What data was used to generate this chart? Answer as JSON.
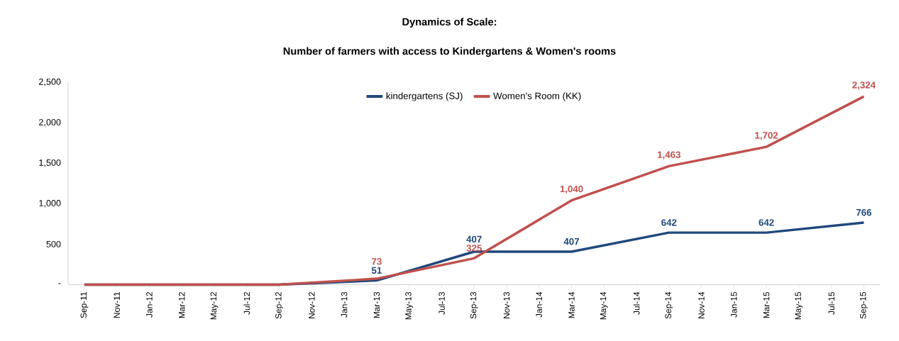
{
  "chart_data": {
    "type": "line",
    "title": "Dynamics of Scale:",
    "subtitle": "Number of farmers with access to Kindergartens & Women's rooms",
    "categories": [
      "Sep-11",
      "Nov-11",
      "Jan-12",
      "Mar-12",
      "May-12",
      "Jul-12",
      "Sep-12",
      "Nov-12",
      "Jan-13",
      "Mar-13",
      "May-13",
      "Jul-13",
      "Sep-13",
      "Nov-13",
      "Jan-14",
      "Mar-14",
      "May-14",
      "Jul-14",
      "Sep-14",
      "Nov-14",
      "Jan-15",
      "Mar-15",
      "May-15",
      "Jul-15",
      "Sep-15"
    ],
    "series": [
      {
        "name": "kindergartens (SJ)",
        "color": "#1f497d",
        "values": [
          0,
          null,
          null,
          null,
          null,
          null,
          0,
          null,
          null,
          51,
          null,
          null,
          407,
          null,
          null,
          407,
          null,
          null,
          642,
          null,
          null,
          642,
          null,
          null,
          766
        ],
        "value_labels": [
          null,
          null,
          null,
          null,
          null,
          null,
          null,
          null,
          null,
          "51",
          null,
          null,
          "407",
          null,
          null,
          "407",
          null,
          null,
          "642",
          null,
          null,
          "642",
          null,
          null,
          "766"
        ]
      },
      {
        "name": "Women's Room (KK)",
        "color": "#c0504d",
        "values": [
          0,
          null,
          null,
          null,
          null,
          null,
          0,
          null,
          null,
          73,
          null,
          null,
          325,
          null,
          null,
          1040,
          null,
          null,
          1463,
          null,
          null,
          1702,
          null,
          null,
          2324
        ],
        "value_labels": [
          null,
          null,
          null,
          null,
          null,
          null,
          null,
          null,
          null,
          "73",
          null,
          null,
          "325",
          null,
          null,
          "1,040",
          null,
          null,
          "1,463",
          null,
          null,
          "1,702",
          null,
          null,
          "2,324"
        ]
      }
    ],
    "ylim": [
      0,
      2500
    ],
    "yticks": [
      {
        "value": 0,
        "label": "-"
      },
      500,
      {
        "value": 1000,
        "label": "1,000"
      },
      {
        "value": 1500,
        "label": "1,500"
      },
      {
        "value": 2000,
        "label": "2,000"
      },
      {
        "value": 2500,
        "label": "2,500"
      }
    ],
    "grid": false,
    "legend": "top",
    "marker": "none",
    "line_style": "solid"
  }
}
